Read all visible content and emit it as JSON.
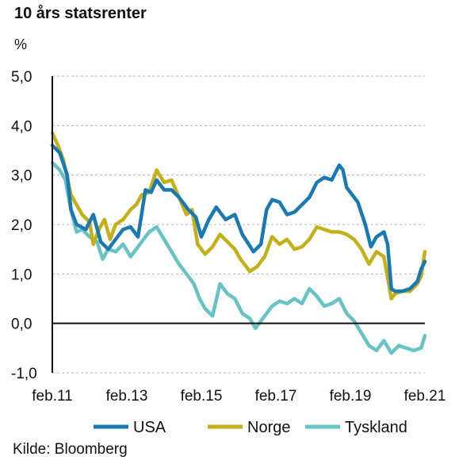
{
  "chart_data": {
    "type": "line",
    "title": "10 års statsrenter",
    "ylabel": "%",
    "source": "Kilde: Bloomberg",
    "ylim": [
      -1.0,
      5.0
    ],
    "xlim": [
      2011.1,
      2021.1
    ],
    "yticks": [
      "5,0",
      "4,0",
      "3,0",
      "2,0",
      "1,0",
      "0,0",
      "-1,0"
    ],
    "ytick_values": [
      5,
      4,
      3,
      2,
      1,
      0,
      -1
    ],
    "xticks": [
      "feb.11",
      "feb.13",
      "feb.15",
      "feb.17",
      "feb.19",
      "feb.21"
    ],
    "xtick_values": [
      2011.1,
      2013.1,
      2015.1,
      2017.1,
      2019.1,
      2021.1
    ],
    "grid": true,
    "legend_position": "bottom",
    "series": [
      {
        "name": "USA",
        "color": "#1a79b3",
        "x": [
          2011.1,
          2011.3,
          2011.5,
          2011.6,
          2011.75,
          2012.0,
          2012.2,
          2012.4,
          2012.6,
          2012.8,
          2013.0,
          2013.2,
          2013.4,
          2013.6,
          2013.75,
          2013.9,
          2014.1,
          2014.3,
          2014.5,
          2014.75,
          2014.95,
          2015.1,
          2015.3,
          2015.5,
          2015.75,
          2016.0,
          2016.2,
          2016.5,
          2016.7,
          2016.85,
          2017.0,
          2017.2,
          2017.4,
          2017.6,
          2017.8,
          2018.0,
          2018.2,
          2018.4,
          2018.6,
          2018.8,
          2018.9,
          2019.0,
          2019.1,
          2019.3,
          2019.5,
          2019.65,
          2019.8,
          2020.0,
          2020.1,
          2020.2,
          2020.3,
          2020.5,
          2020.7,
          2020.9,
          2021.0,
          2021.1
        ],
        "y": [
          3.6,
          3.45,
          3.0,
          2.3,
          2.0,
          1.9,
          2.2,
          1.65,
          1.5,
          1.7,
          1.9,
          1.95,
          1.75,
          2.7,
          2.65,
          2.9,
          2.7,
          2.7,
          2.55,
          2.3,
          2.15,
          1.75,
          2.1,
          2.35,
          2.1,
          2.2,
          1.8,
          1.45,
          1.6,
          2.3,
          2.5,
          2.45,
          2.2,
          2.25,
          2.4,
          2.55,
          2.85,
          2.95,
          2.9,
          3.2,
          3.1,
          2.75,
          2.65,
          2.45,
          2.0,
          1.55,
          1.75,
          1.85,
          1.6,
          0.7,
          0.65,
          0.65,
          0.7,
          0.85,
          1.1,
          1.25
        ]
      },
      {
        "name": "Norge",
        "color": "#c4b11a",
        "x": [
          2011.1,
          2011.25,
          2011.4,
          2011.6,
          2011.75,
          2011.9,
          2012.1,
          2012.2,
          2012.35,
          2012.5,
          2012.65,
          2012.8,
          2013.0,
          2013.2,
          2013.35,
          2013.5,
          2013.7,
          2013.9,
          2014.1,
          2014.3,
          2014.5,
          2014.7,
          2014.85,
          2015.0,
          2015.2,
          2015.4,
          2015.6,
          2015.8,
          2016.0,
          2016.15,
          2016.4,
          2016.6,
          2016.8,
          2017.0,
          2017.2,
          2017.4,
          2017.6,
          2017.8,
          2018.0,
          2018.2,
          2018.4,
          2018.6,
          2018.8,
          2019.0,
          2019.2,
          2019.4,
          2019.6,
          2019.8,
          2020.0,
          2020.2,
          2020.3,
          2020.5,
          2020.7,
          2020.9,
          2021.0,
          2021.1
        ],
        "y": [
          3.85,
          3.6,
          3.3,
          2.6,
          2.4,
          2.2,
          2.05,
          1.6,
          1.9,
          2.1,
          1.7,
          2.0,
          2.1,
          2.3,
          2.4,
          2.6,
          2.65,
          3.1,
          2.85,
          2.9,
          2.55,
          2.2,
          2.3,
          1.6,
          1.4,
          1.55,
          1.8,
          1.65,
          1.5,
          1.3,
          1.05,
          1.15,
          1.35,
          1.75,
          1.6,
          1.7,
          1.5,
          1.55,
          1.7,
          1.95,
          1.9,
          1.85,
          1.85,
          1.8,
          1.7,
          1.5,
          1.2,
          1.45,
          1.35,
          0.5,
          0.6,
          0.65,
          0.65,
          0.8,
          0.95,
          1.45
        ]
      },
      {
        "name": "Tyskland",
        "color": "#68c3c6",
        "x": [
          2011.1,
          2011.3,
          2011.45,
          2011.6,
          2011.75,
          2011.9,
          2012.1,
          2012.3,
          2012.45,
          2012.6,
          2012.8,
          2013.0,
          2013.2,
          2013.35,
          2013.5,
          2013.7,
          2013.9,
          2014.1,
          2014.3,
          2014.5,
          2014.7,
          2014.9,
          2015.05,
          2015.2,
          2015.4,
          2015.6,
          2015.8,
          2016.0,
          2016.2,
          2016.4,
          2016.55,
          2016.7,
          2016.85,
          2017.0,
          2017.2,
          2017.4,
          2017.6,
          2017.8,
          2018.0,
          2018.2,
          2018.4,
          2018.6,
          2018.8,
          2019.0,
          2019.2,
          2019.4,
          2019.6,
          2019.8,
          2020.0,
          2020.2,
          2020.4,
          2020.6,
          2020.8,
          2021.0,
          2021.1
        ],
        "y": [
          3.25,
          3.1,
          2.9,
          2.3,
          1.85,
          1.9,
          1.75,
          1.65,
          1.3,
          1.5,
          1.45,
          1.6,
          1.35,
          1.5,
          1.65,
          1.85,
          1.95,
          1.7,
          1.45,
          1.2,
          1.0,
          0.8,
          0.5,
          0.3,
          0.15,
          0.8,
          0.6,
          0.5,
          0.2,
          0.1,
          -0.1,
          0.05,
          0.2,
          0.35,
          0.45,
          0.4,
          0.5,
          0.4,
          0.7,
          0.55,
          0.35,
          0.4,
          0.5,
          0.2,
          0.05,
          -0.2,
          -0.45,
          -0.55,
          -0.35,
          -0.6,
          -0.45,
          -0.5,
          -0.55,
          -0.5,
          -0.25
        ]
      }
    ]
  }
}
